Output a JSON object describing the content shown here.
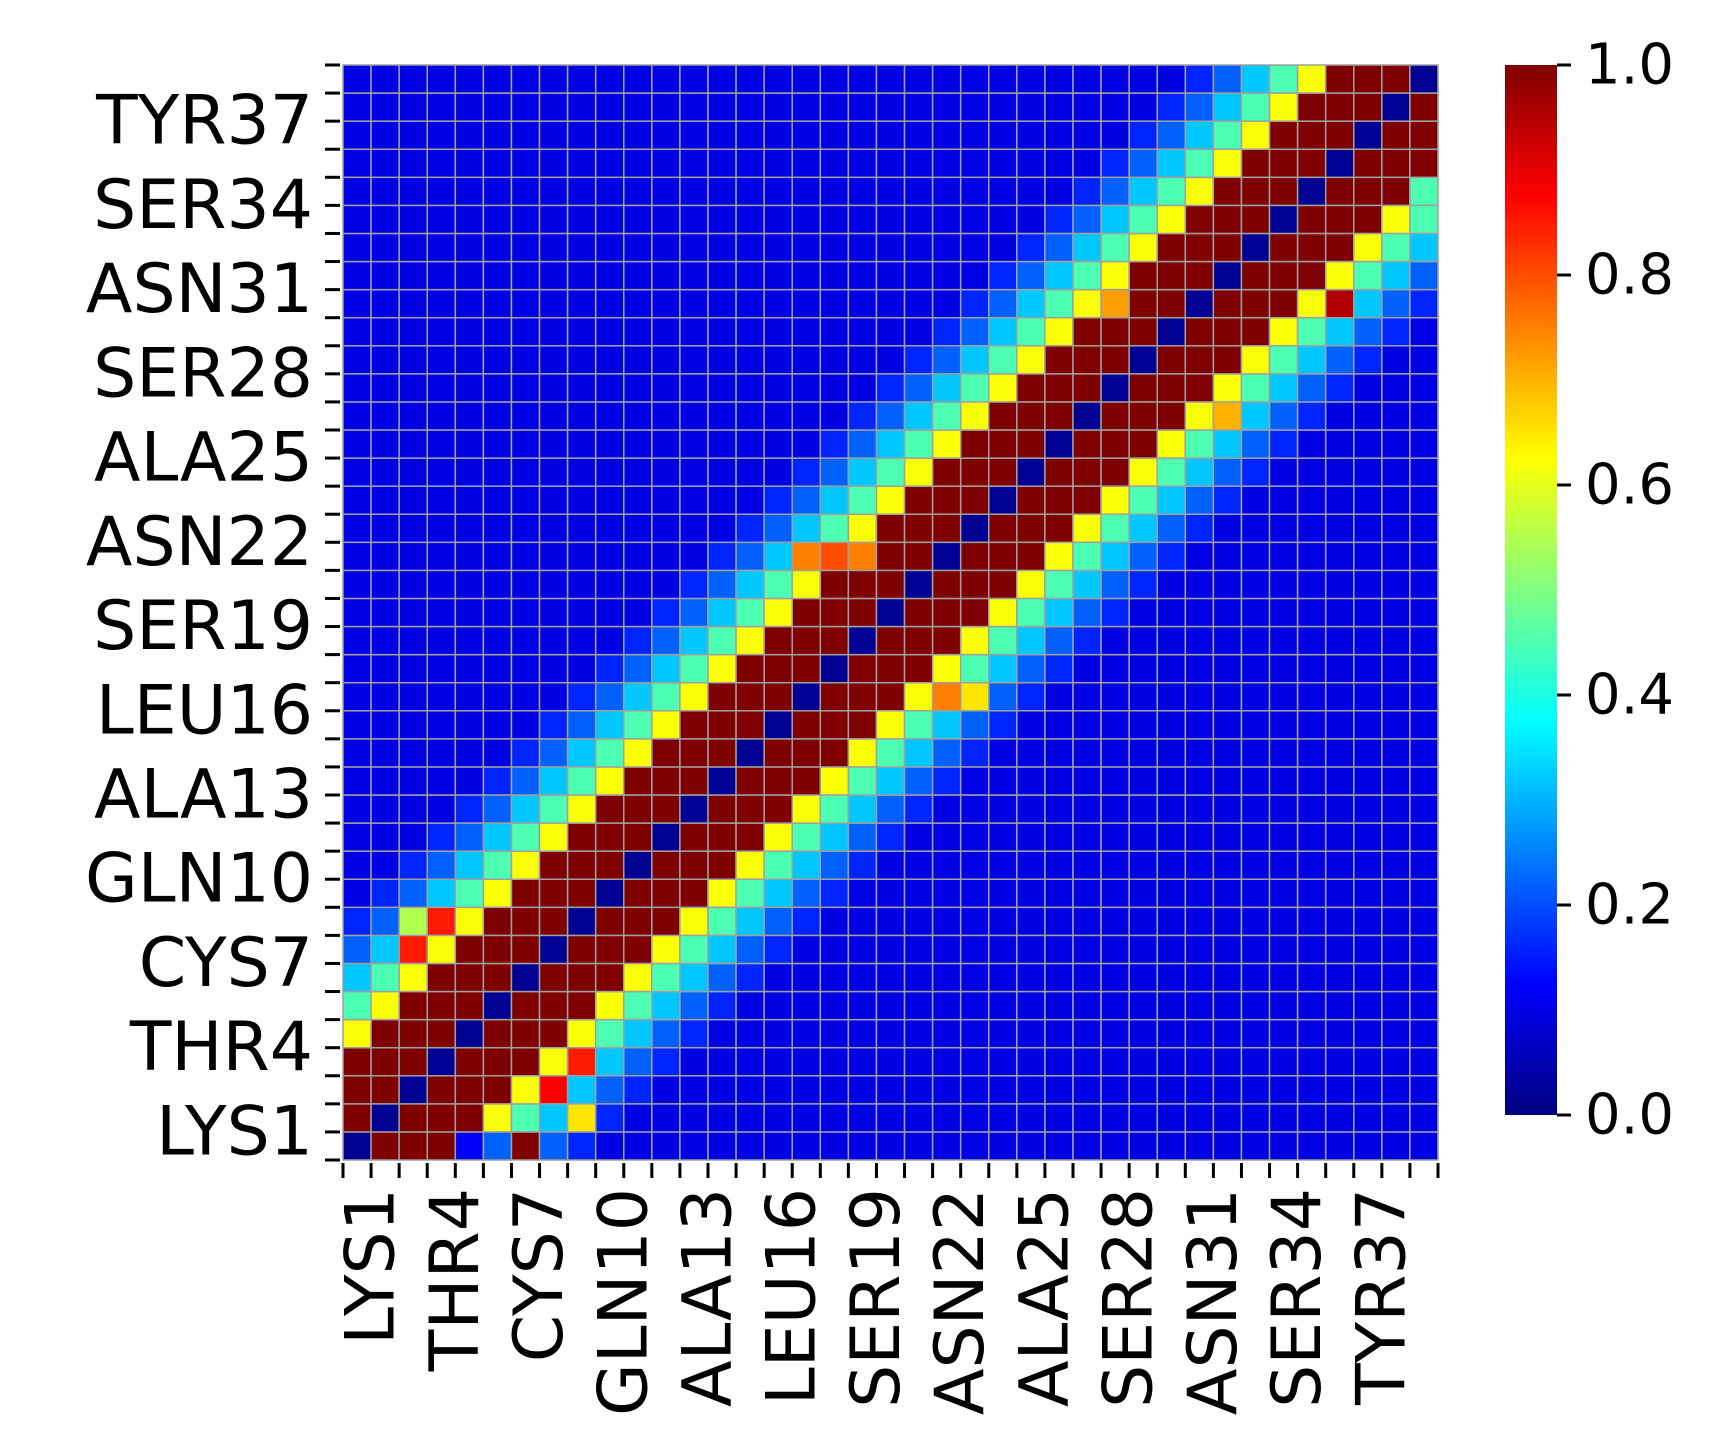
{
  "chart_data": {
    "type": "heatmap",
    "title": "",
    "xlabel": "",
    "ylabel": "",
    "grid": true,
    "grid_color": "#a0a0a0",
    "colormap": "jet",
    "colormap_stops": [
      "#00007f",
      "#0000ff",
      "#0080ff",
      "#00ffff",
      "#80ff80",
      "#ffff00",
      "#ff8000",
      "#ff0000",
      "#7f0000"
    ],
    "n": 39,
    "x_ticklabels": [
      "LYS1",
      "THR4",
      "CYS7",
      "GLN10",
      "ALA13",
      "LEU16",
      "SER19",
      "ASN22",
      "ALA25",
      "SER28",
      "ASN31",
      "SER34",
      "TYR37"
    ],
    "y_ticklabels": [
      "LYS1",
      "THR4",
      "CYS7",
      "GLN10",
      "ALA13",
      "LEU16",
      "SER19",
      "ASN22",
      "ALA25",
      "SER28",
      "ASN31",
      "SER34",
      "TYR37"
    ],
    "label_indices": [
      1,
      4,
      7,
      10,
      13,
      16,
      19,
      22,
      25,
      28,
      31,
      34,
      37
    ],
    "colorbar": {
      "range": [
        0.0,
        1.0
      ],
      "ticks": [
        0.0,
        0.2,
        0.4,
        0.6,
        0.8,
        1.0
      ],
      "ticklabels": [
        "0.0",
        "0.2",
        "0.4",
        "0.6",
        "0.8",
        "1.0"
      ]
    },
    "diagonal_value": 0.02,
    "band_profile": [
      {
        "offset": 1,
        "value": 1.0
      },
      {
        "offset": 2,
        "value": 1.0
      },
      {
        "offset": 3,
        "value": 1.0
      },
      {
        "offset": 4,
        "value": 0.62
      },
      {
        "offset": 5,
        "value": 0.45
      },
      {
        "offset": 6,
        "value": 0.32
      },
      {
        "offset": 7,
        "value": 0.22
      },
      {
        "offset": 8,
        "value": 0.16
      }
    ],
    "background_value": 0.1,
    "notable_cells": [
      {
        "x": 0,
        "y": 0,
        "value": 0.02
      },
      {
        "x": 1,
        "y": 0,
        "value": 1.0
      },
      {
        "x": 2,
        "y": 0,
        "value": 1.0
      },
      {
        "x": 3,
        "y": 0,
        "value": 1.0
      },
      {
        "x": 4,
        "y": 0,
        "value": 0.12
      },
      {
        "x": 5,
        "y": 0,
        "value": 0.22
      },
      {
        "x": 6,
        "y": 0,
        "value": 1.0
      },
      {
        "x": 2,
        "y": 8,
        "value": 0.55
      },
      {
        "x": 3,
        "y": 8,
        "value": 0.85
      },
      {
        "x": 2,
        "y": 7,
        "value": 0.85
      },
      {
        "x": 8,
        "y": 3,
        "value": 0.85
      },
      {
        "x": 7,
        "y": 2,
        "value": 0.88
      },
      {
        "x": 8,
        "y": 1,
        "value": 0.65
      },
      {
        "x": 21,
        "y": 16,
        "value": 0.75
      },
      {
        "x": 22,
        "y": 16,
        "value": 0.65
      },
      {
        "x": 16,
        "y": 21,
        "value": 0.75
      },
      {
        "x": 18,
        "y": 21,
        "value": 0.75
      },
      {
        "x": 17,
        "y": 21,
        "value": 0.8
      },
      {
        "x": 27,
        "y": 30,
        "value": 0.72
      },
      {
        "x": 31,
        "y": 26,
        "value": 0.7
      },
      {
        "x": 35,
        "y": 30,
        "value": 0.95
      },
      {
        "x": 38,
        "y": 38,
        "value": 0.02
      },
      {
        "x": 38,
        "y": 34,
        "value": 0.45
      }
    ]
  }
}
